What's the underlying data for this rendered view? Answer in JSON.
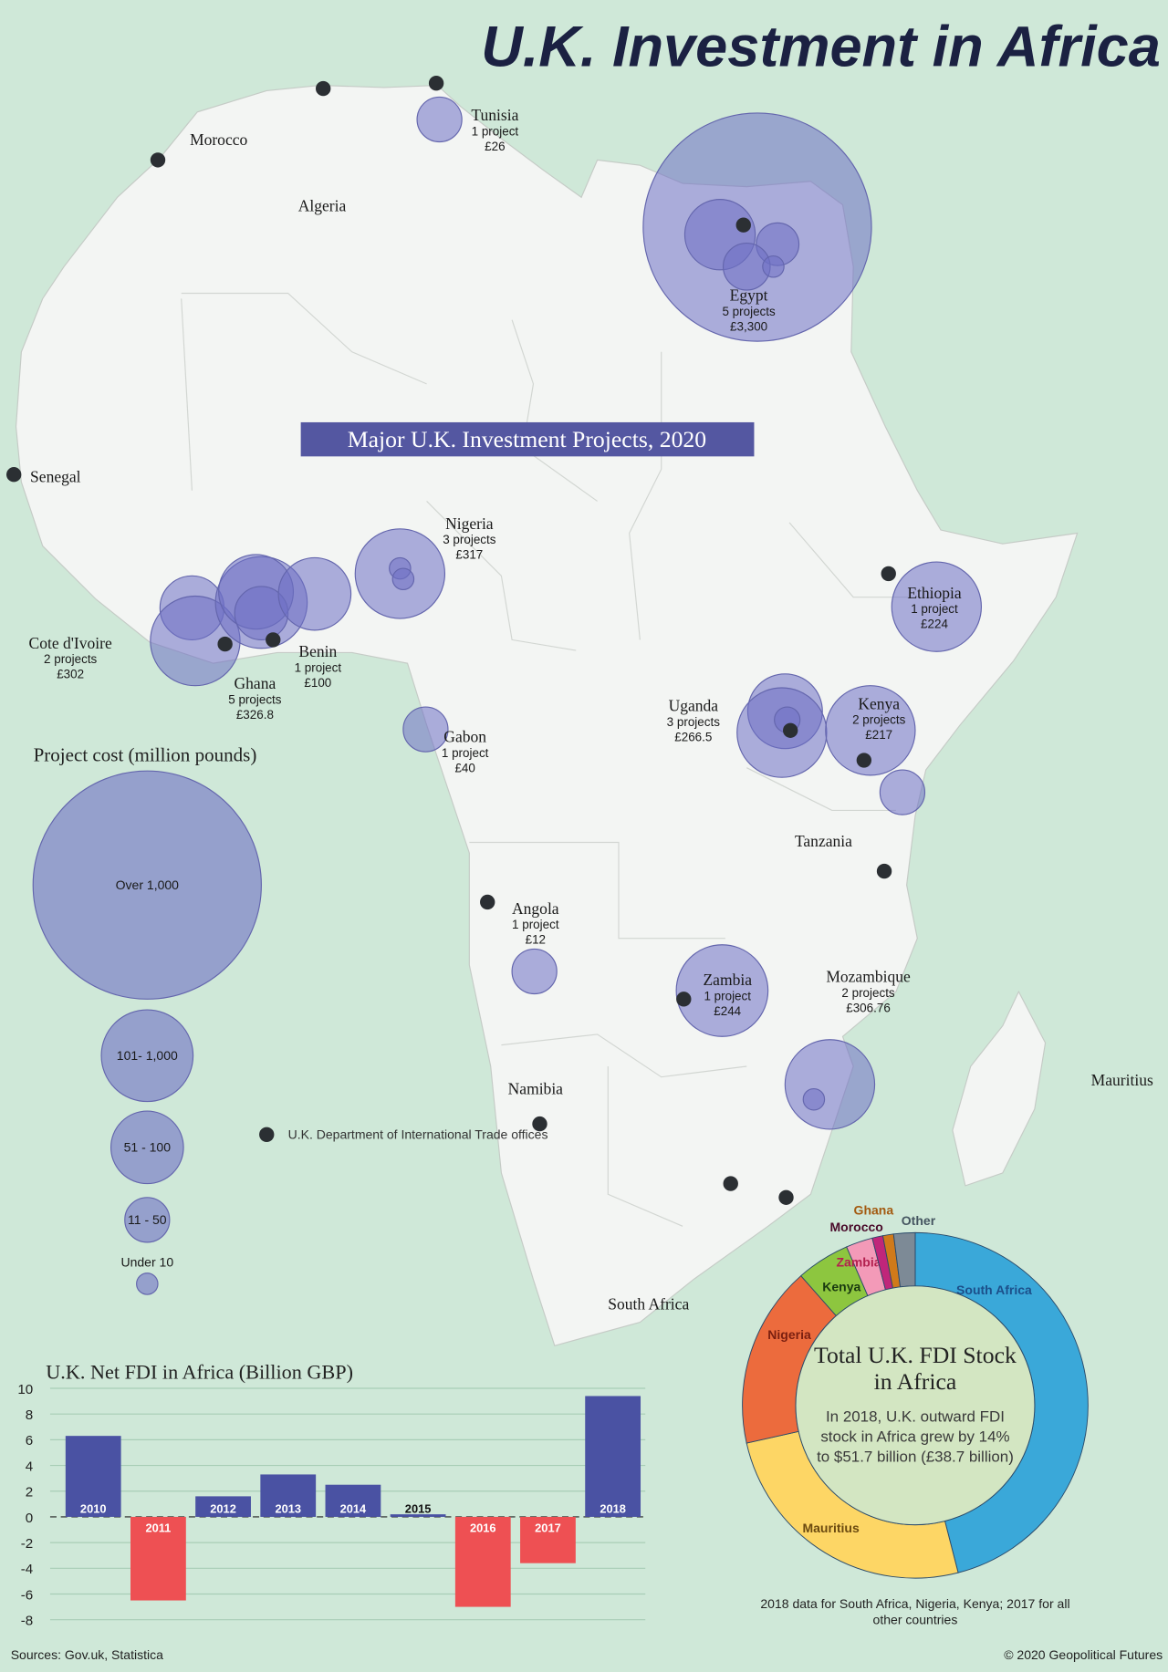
{
  "title": "U.K. Investment in Africa",
  "map": {
    "subtitle": "Major U.K. Investment Projects, 2020",
    "countries": [
      {
        "name": "Tunisia",
        "projects": "1 project",
        "cost": "£26"
      },
      {
        "name": "Egypt",
        "projects": "5 projects",
        "cost": "£3,300"
      },
      {
        "name": "Nigeria",
        "projects": "3 projects",
        "cost": "£317"
      },
      {
        "name": "Ethiopia",
        "projects": "1 project",
        "cost": "£224"
      },
      {
        "name": "Cote d'Ivoire",
        "projects": "2 projects",
        "cost": "£302"
      },
      {
        "name": "Benin",
        "projects": "1 project",
        "cost": "£100"
      },
      {
        "name": "Ghana",
        "projects": "5 projects",
        "cost": "£326.8"
      },
      {
        "name": "Uganda",
        "projects": "3 projects",
        "cost": "£266.5"
      },
      {
        "name": "Kenya",
        "projects": "2 projects",
        "cost": "£217"
      },
      {
        "name": "Gabon",
        "projects": "1 project",
        "cost": "£40"
      },
      {
        "name": "Angola",
        "projects": "1 project",
        "cost": "£12"
      },
      {
        "name": "Zambia",
        "projects": "1 project",
        "cost": "£244"
      },
      {
        "name": "Mozambique",
        "projects": "2 projects",
        "cost": "£306.76"
      }
    ],
    "labels": [
      "Morocco",
      "Algeria",
      "Senegal",
      "Tanzania",
      "Namibia",
      "South Africa",
      "Mauritius"
    ],
    "legend": {
      "title": "Project cost (million pounds)",
      "sizes": [
        "Over 1,000",
        "101- 1,000",
        "51 - 100",
        "11 - 50",
        "Under 10"
      ],
      "offices": "U.K. Department of International Trade offices"
    }
  },
  "chart_data": [
    {
      "type": "bar",
      "title": "U.K. Net FDI in Africa (Billion GBP)",
      "categories": [
        "2010",
        "2011",
        "2012",
        "2013",
        "2014",
        "2015",
        "2016",
        "2017",
        "2018"
      ],
      "values": [
        6.3,
        -6.5,
        1.6,
        3.3,
        2.5,
        0.2,
        -7.0,
        -3.6,
        9.4
      ],
      "colors": [
        "#4a52a3",
        "#ee5053",
        "#4a52a3",
        "#4a52a3",
        "#4a52a3",
        "#4a52a3",
        "#ee5053",
        "#ee5053",
        "#4a52a3"
      ],
      "ylim": [
        -8,
        10
      ],
      "yticks": [
        -8,
        -6,
        -4,
        -2,
        0,
        2,
        4,
        6,
        8,
        10
      ],
      "grid": true
    },
    {
      "type": "donut",
      "title": "Total U.K. FDI Stock in Africa",
      "description": "In 2018, U.K. outward FDI stock in Africa grew by 14% to $51.7 billion (£38.7 billion)",
      "note": "2018 data for South Africa, Nigeria, Kenya; 2017 for all other countries",
      "categories": [
        "South Africa",
        "Mauritius",
        "Nigeria",
        "Kenya",
        "Zambia",
        "Morocco",
        "Ghana",
        "Other"
      ],
      "values": [
        46,
        25.5,
        17,
        5,
        2.5,
        1,
        1,
        2
      ],
      "colors": [
        "#3aa8d9",
        "#fdd665",
        "#ec6b3d",
        "#8dc63f",
        "#f39ab8",
        "#c0267a",
        "#d07a1a",
        "#7d8a96"
      ]
    }
  ],
  "sources": "Sources: Gov.uk, Statistica",
  "copyright": "© 2020 Geopolitical Futures"
}
